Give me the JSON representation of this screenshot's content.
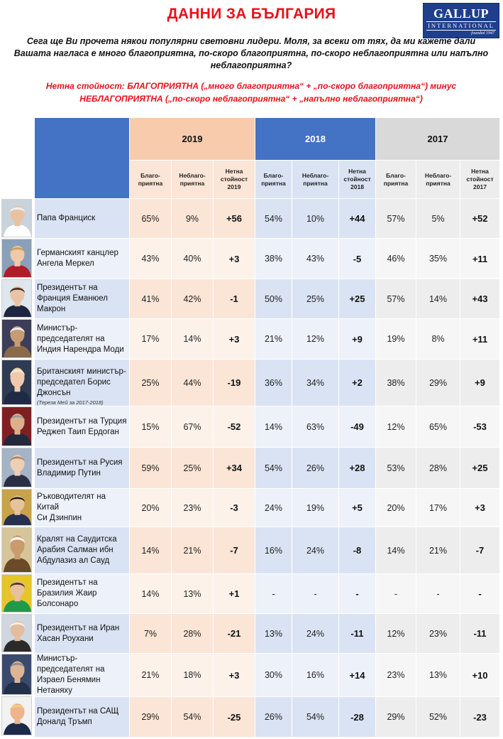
{
  "header": {
    "title": "ДАННИ ЗА БЪЛГАРИЯ",
    "logo": {
      "line1": "GALLUP",
      "line2": "INTERNATIONAL",
      "line3": "founded 1947"
    },
    "question": "Сега ще Ви прочета някои популярни световни лидери. Моля, за всеки от тях, да ми кажете дали Вашата нагласа е много благоприятна, по-скоро благоприятна, по-скоро неблагоприятна или напълно неблагоприятна?",
    "net_line1": "Нетна стойност:  БЛАГОПРИЯТНА  („много благоприятна“  + „по-скоро благоприятна“)   минус",
    "net_line2": "НЕБЛАГОПРИЯТНА  („по-скоро  неблагоприятна“  + „напълно  неблагоприятна“)"
  },
  "table": {
    "years": [
      "2019",
      "2018",
      "2017"
    ],
    "subheaders": [
      [
        "Благо-",
        "приятна"
      ],
      [
        "Неблаго-",
        "приятна"
      ],
      [
        "Нетна",
        "стойност",
        "2019"
      ],
      [
        "Благо-",
        "приятна"
      ],
      [
        "Неблаго-",
        "приятна"
      ],
      [
        "Нетна",
        "стойност",
        "2018"
      ],
      [
        "Благо-",
        "приятна"
      ],
      [
        "Неблаго-",
        "приятна"
      ],
      [
        "Нетна",
        "стойност",
        "2017"
      ]
    ],
    "rows": [
      {
        "name": [
          "Папа Франциск"
        ],
        "note": "",
        "values": [
          "65%",
          "9%",
          "+56",
          "54%",
          "10%",
          "+44",
          "57%",
          "5%",
          "+52"
        ]
      },
      {
        "name": [
          "Германският канцлер",
          "Ангела Меркел"
        ],
        "note": "",
        "values": [
          "43%",
          "40%",
          "+3",
          "38%",
          "43%",
          "-5",
          "46%",
          "35%",
          "+11"
        ]
      },
      {
        "name": [
          "Президентът на",
          "Франция Еманюел",
          "Макрон"
        ],
        "note": "",
        "values": [
          "41%",
          "42%",
          "-1",
          "50%",
          "25%",
          "+25",
          "57%",
          "14%",
          "+43"
        ]
      },
      {
        "name": [
          "Министър-",
          "председателят на",
          "Индия Нарендра Моди"
        ],
        "note": "",
        "values": [
          "17%",
          "14%",
          "+3",
          "21%",
          "12%",
          "+9",
          "19%",
          "8%",
          "+11"
        ]
      },
      {
        "name": [
          "Британският министър-",
          "председател Борис",
          "Джонсън"
        ],
        "note": "(Тереза  Мей за 2017-2018)",
        "values": [
          "25%",
          "44%",
          "-19",
          "36%",
          "34%",
          "+2",
          "38%",
          "29%",
          "+9"
        ]
      },
      {
        "name": [
          "Президентът на Турция",
          "Реджеп Таип Ердоган"
        ],
        "note": "",
        "values": [
          "15%",
          "67%",
          "-52",
          "14%",
          "63%",
          "-49",
          "12%",
          "65%",
          "-53"
        ]
      },
      {
        "name": [
          "Президентът на Русия",
          "Владимир Путин"
        ],
        "note": "",
        "values": [
          "59%",
          "25%",
          "+34",
          "54%",
          "26%",
          "+28",
          "53%",
          "28%",
          "+25"
        ]
      },
      {
        "name": [
          "Ръководителят на Китай",
          "Си Дзинпин"
        ],
        "note": "",
        "values": [
          "20%",
          "23%",
          "-3",
          "24%",
          "19%",
          "+5",
          "20%",
          "17%",
          "+3"
        ]
      },
      {
        "name": [
          "Кралят на Саудитска",
          "Арабия Салман ибн",
          "Абдулазиз ал Сауд"
        ],
        "note": "",
        "values": [
          "14%",
          "21%",
          "-7",
          "16%",
          "24%",
          "-8",
          "14%",
          "21%",
          "-7"
        ]
      },
      {
        "name": [
          "Президентът на",
          "Бразилия Жаир",
          "Болсонаро"
        ],
        "note": "",
        "values": [
          "14%",
          "13%",
          "+1",
          "-",
          "-",
          "-",
          "-",
          "-",
          "-"
        ]
      },
      {
        "name": [
          "Президентът на Иран",
          "Хасан Роухани"
        ],
        "note": "",
        "values": [
          "7%",
          "28%",
          "-21",
          "13%",
          "24%",
          "-11",
          "12%",
          "23%",
          "-11"
        ]
      },
      {
        "name": [
          "Министър-",
          "председателят на",
          "Израел Бенямин",
          "Нетаняху"
        ],
        "note": "",
        "values": [
          "21%",
          "18%",
          "+3",
          "30%",
          "16%",
          "+14",
          "23%",
          "13%",
          "+10"
        ]
      },
      {
        "name": [
          "Президентът на САЩ",
          "Доналд Тръмп"
        ],
        "note": "",
        "values": [
          "29%",
          "54%",
          "-25",
          "26%",
          "54%",
          "-28",
          "29%",
          "52%",
          "-23"
        ]
      }
    ]
  },
  "portraits": [
    {
      "icon": "portrait-icon",
      "skin": "#e8c2a0",
      "hair": "#f2f2f2",
      "top": "#ffffff",
      "bg": "#c9d3dc"
    },
    {
      "icon": "portrait-icon",
      "skin": "#efc9a8",
      "hair": "#c9a15a",
      "top": "#b11c2a",
      "bg": "#8aa0b8"
    },
    {
      "icon": "portrait-icon",
      "skin": "#e9c4a4",
      "hair": "#4a3426",
      "top": "#1d2540",
      "bg": "#dfe6ee"
    },
    {
      "icon": "portrait-icon",
      "skin": "#c79b74",
      "hair": "#f0f0f0",
      "top": "#8a6a4a",
      "bg": "#3d3d5a"
    },
    {
      "icon": "portrait-icon",
      "skin": "#f0c8ae",
      "hair": "#f3e9c5",
      "top": "#1f2a44",
      "bg": "#2e3b52"
    },
    {
      "icon": "portrait-icon",
      "skin": "#dcb08c",
      "hair": "#9a9a9a",
      "top": "#23283a",
      "bg": "#7f1f22"
    },
    {
      "icon": "portrait-icon",
      "skin": "#efcfb4",
      "hair": "#a88a6c",
      "top": "#2a2f44",
      "bg": "#a5b3c6"
    },
    {
      "icon": "portrait-icon",
      "skin": "#e7c39c",
      "hair": "#1a1a1a",
      "top": "#26304f",
      "bg": "#c9a24a"
    },
    {
      "icon": "portrait-icon",
      "skin": "#c99b6d",
      "hair": "#ffffff",
      "top": "#6b4a2a",
      "bg": "#d6c59a"
    },
    {
      "icon": "portrait-icon",
      "skin": "#e8c09c",
      "hair": "#4a3a2e",
      "top": "#1f9a4a",
      "bg": "#e6c52a"
    },
    {
      "icon": "portrait-icon",
      "skin": "#e3be9c",
      "hair": "#f4f4f4",
      "top": "#2a2a2a",
      "bg": "#cfd6df"
    },
    {
      "icon": "portrait-icon",
      "skin": "#dfb495",
      "hair": "#8f8f8f",
      "top": "#23304a",
      "bg": "#3a4a6e"
    },
    {
      "icon": "portrait-icon",
      "skin": "#efb48e",
      "hair": "#f1d27a",
      "top": "#1d2a4a",
      "bg": "#f2f2f2"
    }
  ]
}
